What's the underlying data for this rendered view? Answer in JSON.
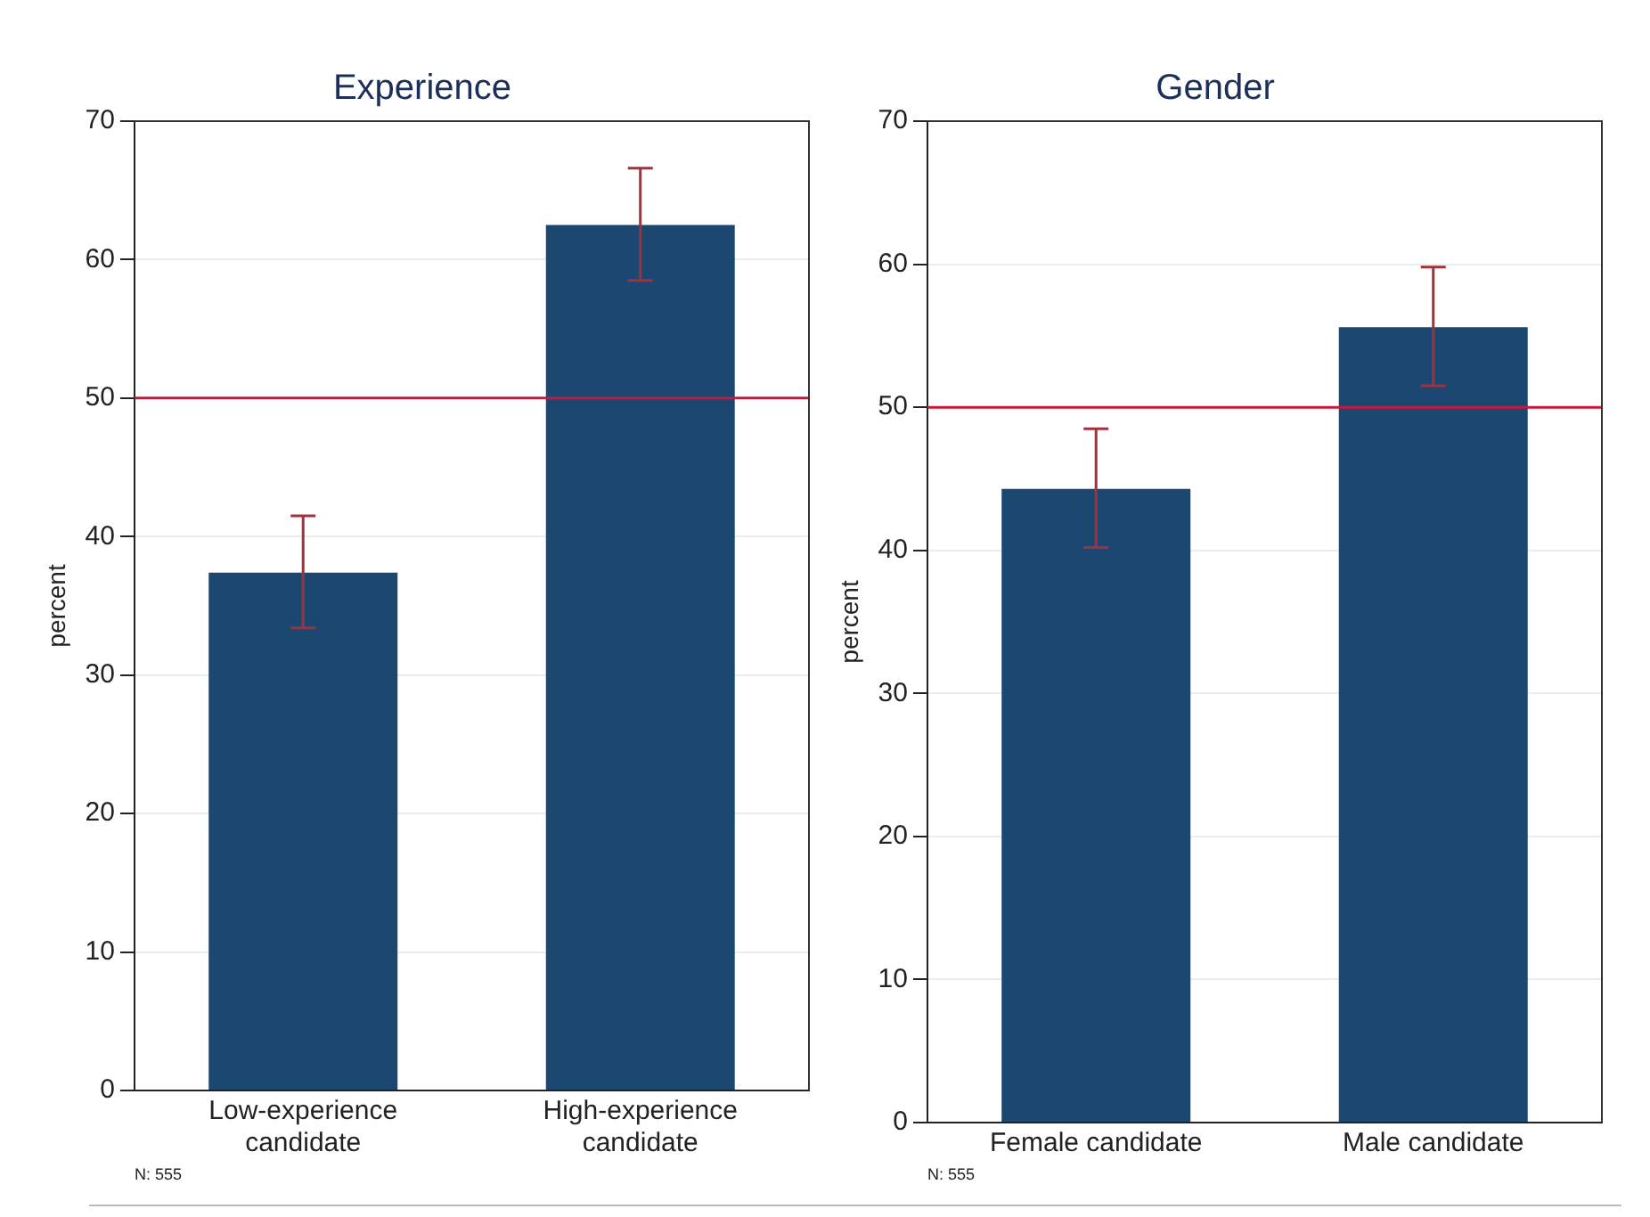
{
  "chart_data": [
    {
      "type": "bar",
      "title": "Experience",
      "ylabel": "percent",
      "categories": [
        "Low-experience candidate",
        "High-experience candidate"
      ],
      "values": [
        37.4,
        62.5
      ],
      "errors": [
        [
          33.4,
          41.5
        ],
        [
          58.5,
          66.6
        ]
      ],
      "color": "#1c4770",
      "ylim": [
        0,
        70
      ],
      "yticks": [
        0,
        10,
        20,
        30,
        40,
        50,
        60,
        70
      ],
      "grid": "y",
      "ref_lines": [
        {
          "axis": "y",
          "value": 50,
          "color": "#c8163c"
        }
      ],
      "annotations": [
        "N: 555"
      ]
    },
    {
      "type": "bar",
      "title": "Gender",
      "ylabel": "percent",
      "categories": [
        "Female candidate",
        "Male candidate"
      ],
      "values": [
        44.3,
        55.6
      ],
      "errors": [
        [
          40.2,
          48.5
        ],
        [
          51.5,
          59.8
        ]
      ],
      "color": "#1c4770",
      "ylim": [
        0,
        70
      ],
      "yticks": [
        0,
        10,
        20,
        30,
        40,
        50,
        60,
        70
      ],
      "grid": "y",
      "ref_lines": [
        {
          "axis": "y",
          "value": 50,
          "color": "#c8163c"
        }
      ],
      "annotations": [
        "N: 555"
      ]
    }
  ]
}
